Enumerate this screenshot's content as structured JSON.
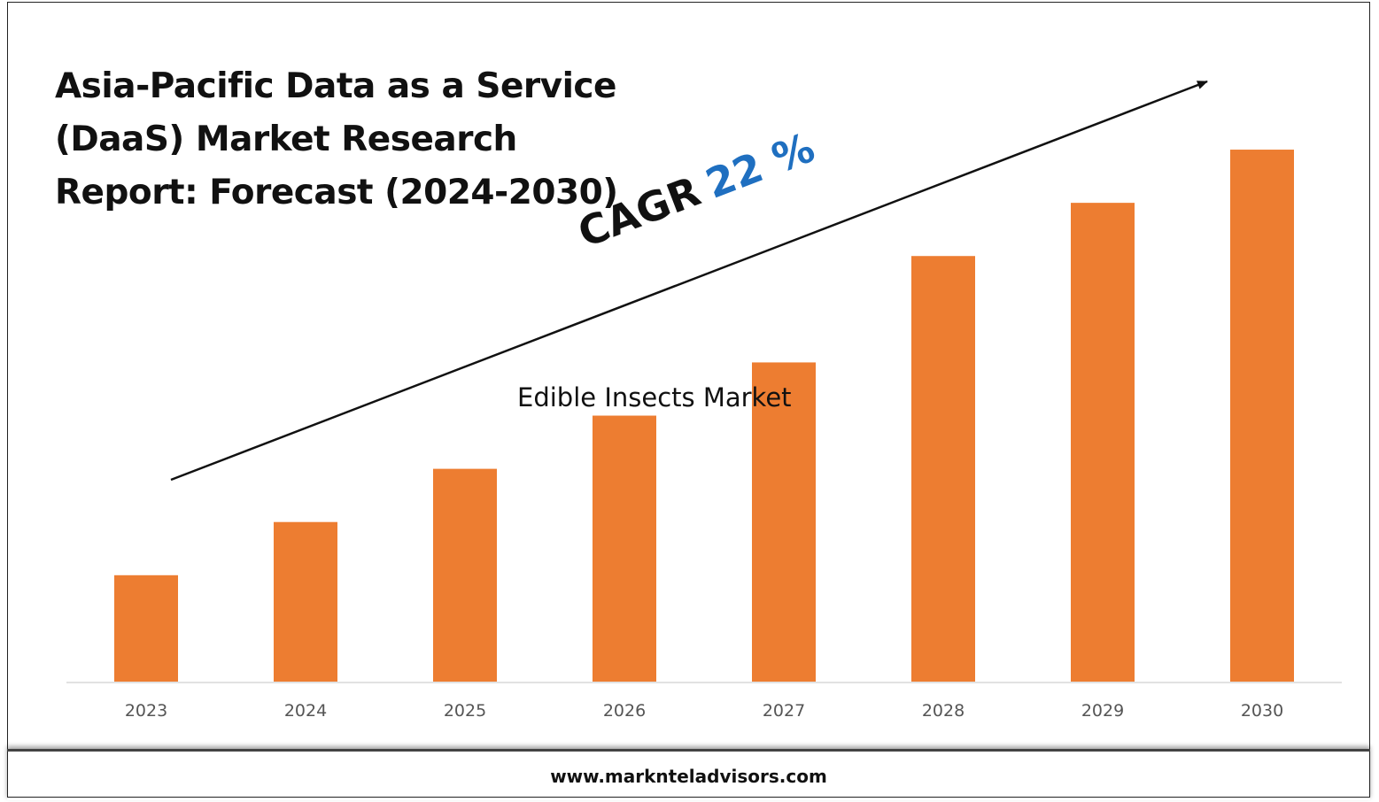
{
  "title": "Asia-Pacific Data as a Service (DaaS) Market Research Report: Forecast (2024-2030)",
  "cagr": {
    "label": "CAGR",
    "value": "22 %"
  },
  "subtitle": "Edible Insects Market",
  "footer": {
    "url": "www.marknteladvisors.com"
  },
  "colors": {
    "bar": "#ed7d31",
    "cagr_value": "#1f6fc0",
    "axis": "#d9d9d9"
  },
  "chart_data": {
    "type": "bar",
    "categories": [
      "2023",
      "2024",
      "2025",
      "2026",
      "2027",
      "2028",
      "2029",
      "2030"
    ],
    "values": [
      1,
      1.5,
      2,
      2.5,
      3,
      4,
      4.5,
      5
    ],
    "ylim": [
      0,
      5.2
    ],
    "grid": false,
    "legend": "none",
    "annotations": [
      "CAGR 22 %",
      "trend arrow rising left to right"
    ]
  }
}
